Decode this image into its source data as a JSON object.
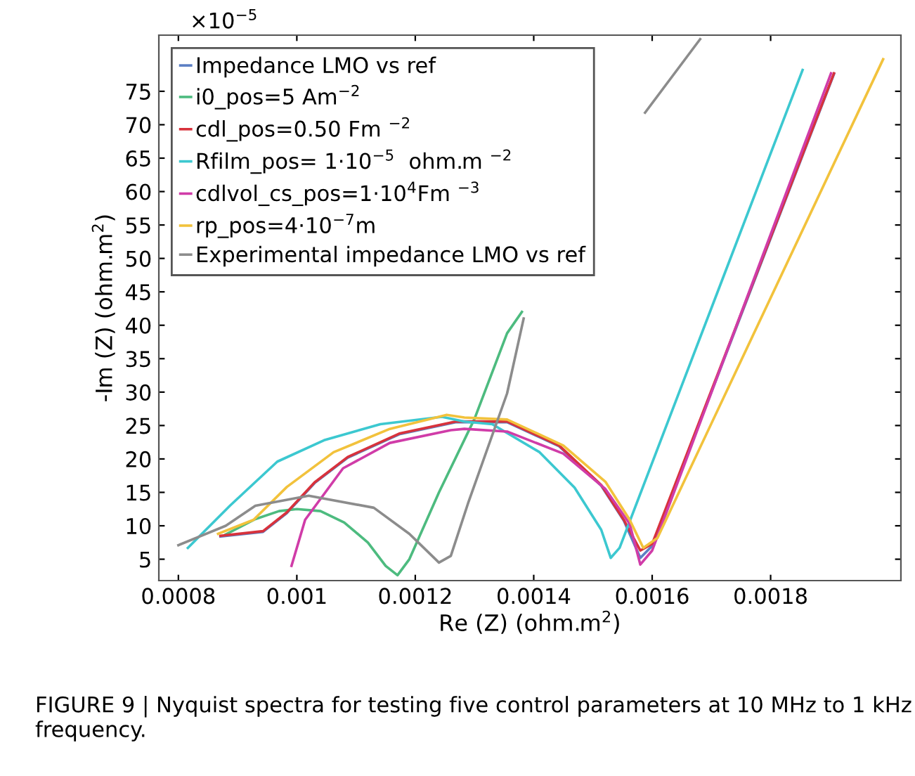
{
  "chart_data": {
    "type": "line",
    "xlabel": "Re (Z) (ohm.m$^{2}$)",
    "ylabel": "-Im (Z) (ohm.m$^{2}$)",
    "xlim": [
      0.000767,
      0.00202
    ],
    "ylim": [
      1.8,
      83.4
    ],
    "xticks": [
      0.0008,
      0.001,
      0.0012,
      0.0014,
      0.0016,
      0.0018
    ],
    "yticks": [
      5,
      10,
      15,
      20,
      25,
      30,
      35,
      40,
      45,
      50,
      55,
      60,
      65,
      70,
      75
    ],
    "grid": false,
    "legend": "top left",
    "marker": "none",
    "line_style": "solid",
    "annotations": [
      "×10$^{−5}$",
      "FIGURE 9 | Nyquist spectra for testing five control parameters at 10 MHz to 1 kHz frequency."
    ],
    "series": [
      {
        "name": "Impedance LMO vs ref",
        "color": "#5b7fc4",
        "x": [
          0.000871,
          0.000943,
          0.000983,
          0.00103,
          0.001086,
          0.001173,
          0.001268,
          0.001355,
          0.001443,
          0.001514,
          0.001552,
          0.00158,
          0.0016,
          0.001907
        ],
        "values": [
          8.4,
          9.1,
          11.9,
          16.4,
          20.2,
          23.7,
          25.5,
          25.5,
          21.9,
          16.0,
          10.8,
          5.2,
          7.0,
          77.6
        ]
      },
      {
        "name": "i0_pos=5 Am$^{−2}$",
        "color": "#4dbb7f",
        "x": [
          0.00088,
          0.00093,
          0.00097,
          0.001,
          0.00104,
          0.00108,
          0.00112,
          0.00115,
          0.00117,
          0.00119,
          0.00124,
          0.0013,
          0.001355,
          0.00138
        ],
        "values": [
          8.7,
          11.0,
          12.2,
          12.5,
          12.2,
          10.5,
          7.5,
          4.0,
          2.6,
          5.0,
          15.0,
          26.0,
          38.8,
          42.0
        ]
      },
      {
        "name": "cdl_pos=0.50 Fm $^{−2}$",
        "color": "#d8323c",
        "x": [
          0.000871,
          0.000943,
          0.000983,
          0.00103,
          0.001086,
          0.001173,
          0.001268,
          0.001355,
          0.001443,
          0.001514,
          0.001552,
          0.00158,
          0.0016,
          0.001907
        ],
        "values": [
          8.5,
          9.2,
          12.0,
          16.5,
          20.3,
          23.8,
          25.6,
          25.6,
          22.0,
          16.1,
          10.9,
          6.3,
          7.3,
          77.7
        ]
      },
      {
        "name": "Rfilm_pos= 1·10$^{−5}$  ohm.m $^{−2}$",
        "color": "#3cc8d0",
        "x": [
          0.000816,
          0.000887,
          0.000967,
          0.001046,
          0.001141,
          0.001245,
          0.001283,
          0.00133,
          0.00141,
          0.001469,
          0.001514,
          0.00153,
          0.001545,
          0.001854
        ],
        "values": [
          6.7,
          13.0,
          19.6,
          22.8,
          25.2,
          26.3,
          25.6,
          25.2,
          21.0,
          15.7,
          9.4,
          5.2,
          6.7,
          78.2
        ]
      },
      {
        "name": "cdlvol_cs_pos=1·10$^{4}$Fm $^{−3}$",
        "color": "#d03ca8",
        "x": [
          0.000991,
          0.001014,
          0.001078,
          0.001157,
          0.00126,
          0.001283,
          0.001355,
          0.00145,
          0.001521,
          0.001562,
          0.00158,
          0.0016,
          0.001902
        ],
        "values": [
          4.0,
          10.9,
          18.6,
          22.4,
          24.3,
          24.5,
          24.1,
          20.8,
          15.5,
          10.3,
          4.2,
          6.3,
          77.7
        ]
      },
      {
        "name": "rp_pos=4·10$^{−7}$m",
        "color": "#f2c23c",
        "x": [
          0.000867,
          0.000927,
          0.000983,
          0.001062,
          0.001157,
          0.001253,
          0.001283,
          0.001355,
          0.00145,
          0.001521,
          0.001562,
          0.001585,
          0.001609,
          0.00199
        ],
        "values": [
          8.8,
          10.9,
          15.8,
          21.0,
          24.5,
          26.6,
          26.2,
          25.9,
          22.0,
          16.6,
          10.9,
          6.7,
          8.2,
          79.8
        ]
      },
      {
        "name": "Experimental impedance LMO vs ref",
        "color": "#8c8c8c",
        "x": [
          0.0008,
          0.00088,
          0.00093,
          0.00102,
          0.00113,
          0.00119,
          0.00124,
          0.00126,
          0.00129,
          0.001355,
          0.001383,
          0.0015,
          0.001588,
          0.001681
        ],
        "values": [
          7.1,
          10.0,
          13.0,
          14.5,
          12.7,
          8.8,
          4.5,
          5.5,
          13.6,
          29.8,
          41.0,
          null,
          71.8,
          82.8
        ]
      }
    ]
  }
}
